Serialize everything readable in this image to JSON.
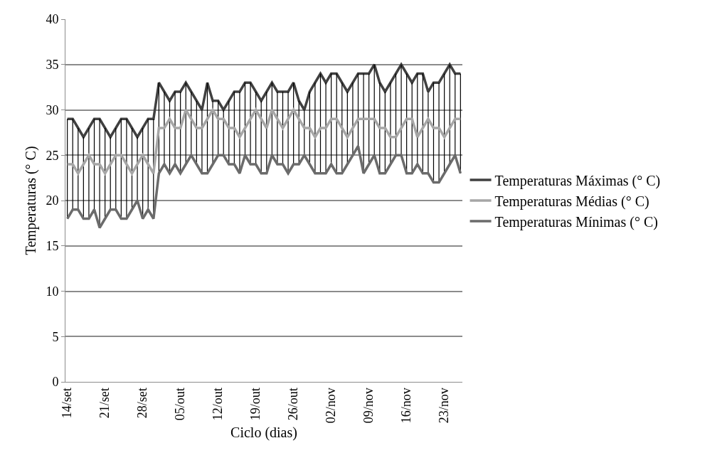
{
  "chart_data": {
    "type": "line",
    "xlabel": "Ciclo (dias)",
    "ylabel": "Temperaturas (° C)",
    "categories": [
      "14/set",
      null,
      null,
      null,
      null,
      null,
      null,
      "21/set",
      null,
      null,
      null,
      null,
      null,
      null,
      "28/set",
      null,
      null,
      null,
      null,
      null,
      null,
      "05/out",
      null,
      null,
      null,
      null,
      null,
      null,
      "12/out",
      null,
      null,
      null,
      null,
      null,
      null,
      "19/out",
      null,
      null,
      null,
      null,
      null,
      null,
      "26/out",
      null,
      null,
      null,
      null,
      null,
      null,
      "02/nov",
      null,
      null,
      null,
      null,
      null,
      null,
      "09/nov",
      null,
      null,
      null,
      null,
      null,
      null,
      "16/nov",
      null,
      null,
      null,
      null,
      null,
      null,
      "23/nov",
      null,
      null,
      null
    ],
    "series": [
      {
        "name": "Temperaturas Máximas (° C)",
        "color": "#404040",
        "values": [
          29,
          29,
          28,
          27,
          28,
          29,
          29,
          28,
          27,
          28,
          29,
          29,
          28,
          27,
          28,
          29,
          29,
          33,
          32,
          31,
          32,
          32,
          33,
          32,
          31,
          30,
          33,
          31,
          31,
          30,
          31,
          32,
          32,
          33,
          33,
          32,
          31,
          32,
          33,
          32,
          32,
          32,
          33,
          31,
          30,
          32,
          33,
          34,
          33,
          34,
          34,
          33,
          32,
          33,
          34,
          34,
          34,
          35,
          33,
          32,
          33,
          34,
          35,
          34,
          33,
          34,
          34,
          32,
          33,
          33,
          34,
          35,
          34,
          34
        ]
      },
      {
        "name": "Temperaturas Médias (° C)",
        "color": "#a6a6a6",
        "values": [
          24,
          24,
          23,
          24,
          25,
          24,
          24,
          23,
          24,
          25,
          25,
          24,
          23,
          24,
          25,
          24,
          23,
          28,
          28,
          29,
          28,
          28,
          30,
          29,
          28,
          28,
          29,
          30,
          29,
          29,
          28,
          28,
          27,
          28,
          29,
          30,
          29,
          28,
          30,
          29,
          28,
          29,
          30,
          29,
          28,
          28,
          27,
          28,
          28,
          29,
          29,
          28,
          27,
          28,
          29,
          29,
          29,
          29,
          28,
          28,
          27,
          27,
          28,
          29,
          29,
          27,
          28,
          29,
          28,
          28,
          27,
          28,
          29,
          29
        ],
        "errors": [
          [
            18,
            29
          ],
          [
            19,
            29
          ],
          [
            19,
            28
          ],
          [
            18,
            27
          ],
          [
            18,
            28
          ],
          [
            19,
            29
          ],
          [
            17,
            29
          ],
          [
            18,
            28
          ],
          [
            19,
            27
          ],
          [
            19,
            28
          ],
          [
            18,
            29
          ],
          [
            18,
            29
          ],
          [
            19,
            28
          ],
          [
            20,
            27
          ],
          [
            18,
            28
          ],
          [
            19,
            29
          ],
          [
            18,
            29
          ],
          [
            23,
            33
          ],
          [
            24,
            32
          ],
          [
            23,
            31
          ],
          [
            24,
            32
          ],
          [
            23,
            32
          ],
          [
            24,
            33
          ],
          [
            25,
            32
          ],
          [
            24,
            31
          ],
          [
            23,
            30
          ],
          [
            23,
            33
          ],
          [
            24,
            31
          ],
          [
            25,
            31
          ],
          [
            25,
            30
          ],
          [
            24,
            31
          ],
          [
            24,
            32
          ],
          [
            23,
            32
          ],
          [
            25,
            33
          ],
          [
            24,
            33
          ],
          [
            24,
            32
          ],
          [
            23,
            31
          ],
          [
            23,
            32
          ],
          [
            25,
            33
          ],
          [
            24,
            32
          ],
          [
            24,
            32
          ],
          [
            23,
            32
          ],
          [
            24,
            33
          ],
          [
            24,
            31
          ],
          [
            25,
            30
          ],
          [
            24,
            32
          ],
          [
            23,
            33
          ],
          [
            23,
            34
          ],
          [
            23,
            33
          ],
          [
            24,
            34
          ],
          [
            23,
            34
          ],
          [
            23,
            33
          ],
          [
            24,
            32
          ],
          [
            25,
            33
          ],
          [
            26,
            34
          ],
          [
            23,
            34
          ],
          [
            24,
            34
          ],
          [
            25,
            35
          ],
          [
            23,
            33
          ],
          [
            23,
            32
          ],
          [
            24,
            33
          ],
          [
            25,
            34
          ],
          [
            25,
            35
          ],
          [
            23,
            34
          ],
          [
            23,
            33
          ],
          [
            24,
            34
          ],
          [
            23,
            34
          ],
          [
            23,
            32
          ],
          [
            22,
            33
          ],
          [
            22,
            33
          ],
          [
            23,
            34
          ],
          [
            24,
            35
          ],
          [
            25,
            34
          ],
          [
            23,
            34
          ]
        ]
      },
      {
        "name": "Temperaturas Mínimas (° C)",
        "color": "#6b6b6b",
        "values": [
          18,
          19,
          19,
          18,
          18,
          19,
          17,
          18,
          19,
          19,
          18,
          18,
          19,
          20,
          18,
          19,
          18,
          23,
          24,
          23,
          24,
          23,
          24,
          25,
          24,
          23,
          23,
          24,
          25,
          25,
          24,
          24,
          23,
          25,
          24,
          24,
          23,
          23,
          25,
          24,
          24,
          23,
          24,
          24,
          25,
          24,
          23,
          23,
          23,
          24,
          23,
          23,
          24,
          25,
          26,
          23,
          24,
          25,
          23,
          23,
          24,
          25,
          25,
          23,
          23,
          24,
          23,
          23,
          22,
          22,
          23,
          24,
          25,
          23
        ]
      }
    ],
    "ylim": [
      0,
      40
    ],
    "yticks": [
      0,
      5,
      10,
      15,
      20,
      25,
      30,
      35,
      40
    ],
    "grid": "y",
    "legend": "right",
    "marker": "none",
    "line_style": "solid"
  }
}
